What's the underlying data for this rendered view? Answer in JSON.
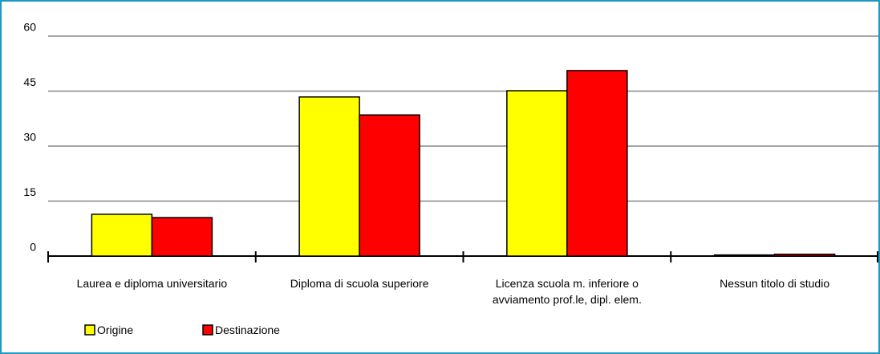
{
  "chart_data": {
    "type": "bar",
    "categories": [
      "Laurea e diploma universitario",
      "Diploma di scuola superiore",
      "Licenza scuola m. inferiore o avviamento prof.le, dipl. elem.",
      "Nessun titolo di studio"
    ],
    "series": [
      {
        "name": "Origine",
        "color": "#ffff00",
        "values": [
          11.4,
          43.4,
          45.1,
          0.3
        ]
      },
      {
        "name": "Destinazione",
        "color": "#ff0000",
        "values": [
          10.5,
          38.5,
          50.6,
          0.5
        ]
      }
    ],
    "ylim": [
      0,
      60
    ],
    "yticks": [
      0,
      15,
      30,
      45,
      60
    ],
    "grid": true,
    "legend": "bottom-left"
  }
}
